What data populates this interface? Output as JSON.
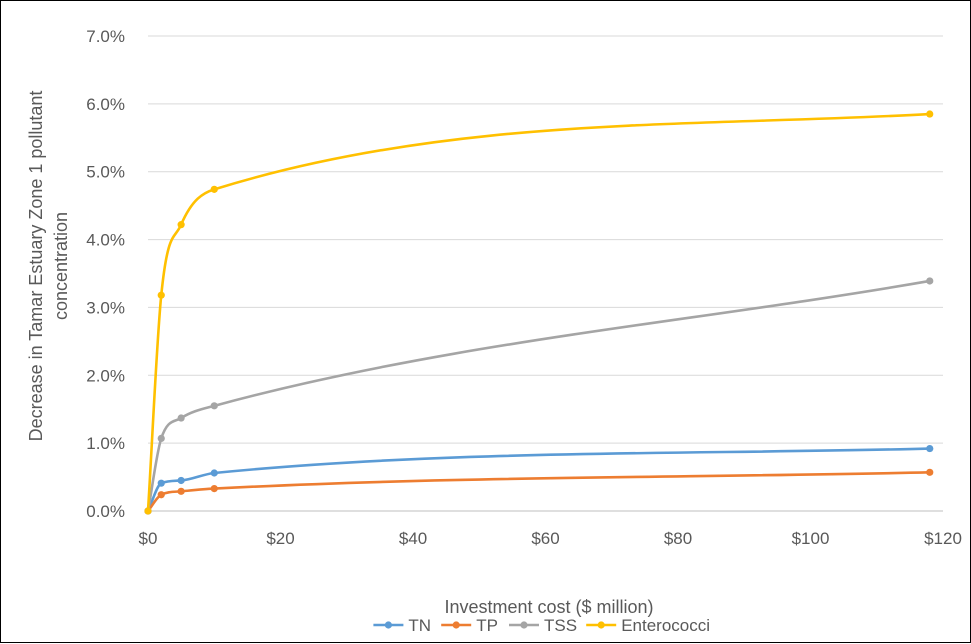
{
  "chart_data": {
    "type": "line",
    "title": "",
    "xlabel": "Investment cost ($ million)",
    "ylabel_lines": [
      "Decrease in Tamar Estuary Zone 1 pollutant",
      "concentration"
    ],
    "x": [
      0,
      2,
      5,
      10,
      118
    ],
    "xlim": [
      0,
      120
    ],
    "ylim": [
      0,
      0.07
    ],
    "x_ticks": [
      0,
      20,
      40,
      60,
      80,
      100,
      120
    ],
    "x_tick_labels": [
      "$0",
      "$20",
      "$40",
      "$60",
      "$80",
      "$100",
      "$120"
    ],
    "y_ticks": [
      0,
      0.01,
      0.02,
      0.03,
      0.04,
      0.05,
      0.06,
      0.07
    ],
    "y_tick_labels": [
      "0.0%",
      "1.0%",
      "2.0%",
      "3.0%",
      "4.0%",
      "5.0%",
      "6.0%",
      "7.0%"
    ],
    "grid": "horizontal",
    "legend_position": "bottom",
    "series": [
      {
        "name": "TN",
        "color": "#5B9BD5",
        "values": [
          0.0,
          0.0041,
          0.0045,
          0.0056,
          0.0092
        ]
      },
      {
        "name": "TP",
        "color": "#ED7D31",
        "values": [
          0.0,
          0.0024,
          0.0029,
          0.0033,
          0.0057
        ]
      },
      {
        "name": "TSS",
        "color": "#A5A5A5",
        "values": [
          0.0,
          0.0107,
          0.0137,
          0.0155,
          0.0339
        ]
      },
      {
        "name": "Enterococci",
        "color": "#FFC000",
        "values": [
          0.0,
          0.0318,
          0.0422,
          0.0474,
          0.0585
        ]
      }
    ]
  }
}
